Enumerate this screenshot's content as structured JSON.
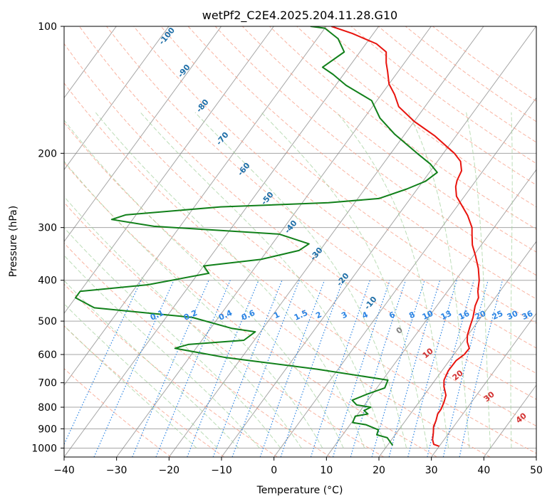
{
  "chart_data": {
    "type": "line",
    "title": "wetPf2_C2E4.2025.204.11.28.G10",
    "xlabel": "Temperature (°C)",
    "ylabel": "Pressure (hPa)",
    "xlim": [
      -40,
      50
    ],
    "ylim": [
      1050,
      100
    ],
    "y_scale": "log",
    "grid": true,
    "x_ticks": [
      -40,
      -30,
      -20,
      -10,
      0,
      10,
      20,
      30,
      40,
      50
    ],
    "y_ticks": [
      100,
      200,
      300,
      400,
      500,
      600,
      700,
      800,
      900,
      1000
    ],
    "skew_labels": {
      "dry_adiabats": [
        "-100",
        "-90",
        "-80",
        "-70",
        "-60",
        "-50",
        "-40",
        "-30",
        "-20",
        "-10"
      ],
      "freezing_level": "0",
      "moist_adiabats": [
        "10",
        "20",
        "30",
        "40"
      ],
      "mixing_ratios": [
        "0.1",
        "0.2",
        "0.4",
        "0.6",
        "1",
        "1.5",
        "2",
        "3",
        "4",
        "6",
        "8",
        "10",
        "13",
        "16",
        "20",
        "25",
        "30",
        "36"
      ]
    },
    "colors": {
      "temperature": "#e8130d",
      "dewpoint": "#11801a",
      "dry_adiabat": "#f7a08a",
      "moist_adiabat": "#9fcf99",
      "mixing_ratio": "#2b84e3",
      "isotherm": "#808080",
      "dry_label": "#1f6fa8",
      "moist_label": "#d32f2f"
    },
    "series": [
      {
        "key": "temperature",
        "points": [
          [
            30.0,
            990
          ],
          [
            28.7,
            980
          ],
          [
            27.8,
            955
          ],
          [
            27.0,
            920
          ],
          [
            26.2,
            890
          ],
          [
            25.8,
            860
          ],
          [
            25.2,
            830
          ],
          [
            25.2,
            810
          ],
          [
            24.8,
            780
          ],
          [
            24.2,
            750
          ],
          [
            22.6,
            715
          ],
          [
            21.7,
            690
          ],
          [
            21.2,
            655
          ],
          [
            21.3,
            620
          ],
          [
            22.0,
            600
          ],
          [
            22.1,
            580
          ],
          [
            20.8,
            560
          ],
          [
            19.9,
            540
          ],
          [
            19.2,
            515
          ],
          [
            18.5,
            490
          ],
          [
            17.3,
            460
          ],
          [
            16.8,
            440
          ],
          [
            15.8,
            425
          ],
          [
            14.5,
            400
          ],
          [
            12.7,
            375
          ],
          [
            10.4,
            350
          ],
          [
            8.3,
            330
          ],
          [
            6.8,
            312
          ],
          [
            5.8,
            300
          ],
          [
            3.3,
            281
          ],
          [
            0.8,
            266
          ],
          [
            -1.5,
            253
          ],
          [
            -3.0,
            240
          ],
          [
            -3.6,
            232
          ],
          [
            -4.1,
            220
          ],
          [
            -5.6,
            209
          ],
          [
            -7.9,
            200
          ],
          [
            -14.0,
            182
          ],
          [
            -20.0,
            168
          ],
          [
            -25.0,
            155
          ],
          [
            -27.5,
            145
          ],
          [
            -30.0,
            137
          ],
          [
            -32.0,
            128
          ],
          [
            -33.5,
            122
          ],
          [
            -35.0,
            115
          ],
          [
            -38.0,
            110
          ],
          [
            -44.0,
            104
          ],
          [
            -49.0,
            100
          ]
        ]
      },
      {
        "key": "dewpoint",
        "points": [
          [
            21.0,
            985
          ],
          [
            20.2,
            970
          ],
          [
            18.9,
            945
          ],
          [
            16.5,
            930
          ],
          [
            16.1,
            905
          ],
          [
            13.0,
            880
          ],
          [
            10.2,
            870
          ],
          [
            9.8,
            840
          ],
          [
            11.9,
            830
          ],
          [
            10.7,
            815
          ],
          [
            11.5,
            800
          ],
          [
            8.5,
            790
          ],
          [
            7.0,
            770
          ],
          [
            9.0,
            745
          ],
          [
            11.5,
            720
          ],
          [
            11.0,
            690
          ],
          [
            -4.0,
            650
          ],
          [
            -23.0,
            610
          ],
          [
            -34.0,
            580
          ],
          [
            -32.0,
            568
          ],
          [
            -22.0,
            555
          ],
          [
            -21.0,
            530
          ],
          [
            -26.0,
            520
          ],
          [
            -35.0,
            490
          ],
          [
            -55.0,
            465
          ],
          [
            -60.0,
            440
          ],
          [
            -60.0,
            425
          ],
          [
            -48.0,
            410
          ],
          [
            -38.0,
            385
          ],
          [
            -40.0,
            370
          ],
          [
            -30.0,
            357
          ],
          [
            -24.0,
            340
          ],
          [
            -23.0,
            328
          ],
          [
            -30.0,
            311
          ],
          [
            -55.0,
            298
          ],
          [
            -64.0,
            287
          ],
          [
            -62.0,
            280
          ],
          [
            -45.0,
            268
          ],
          [
            -25.0,
            262
          ],
          [
            -16.0,
            256
          ],
          [
            -12.0,
            243
          ],
          [
            -9.5,
            233
          ],
          [
            -8.5,
            222
          ],
          [
            -11.0,
            212
          ],
          [
            -15.0,
            200
          ],
          [
            -22.0,
            180
          ],
          [
            -27.0,
            165
          ],
          [
            -31.0,
            150
          ],
          [
            -38.0,
            138
          ],
          [
            -42.0,
            130
          ],
          [
            -45.0,
            125
          ],
          [
            -43.0,
            115
          ],
          [
            -46.0,
            107
          ],
          [
            -50.0,
            101
          ],
          [
            -53.0,
            100
          ]
        ]
      }
    ]
  }
}
